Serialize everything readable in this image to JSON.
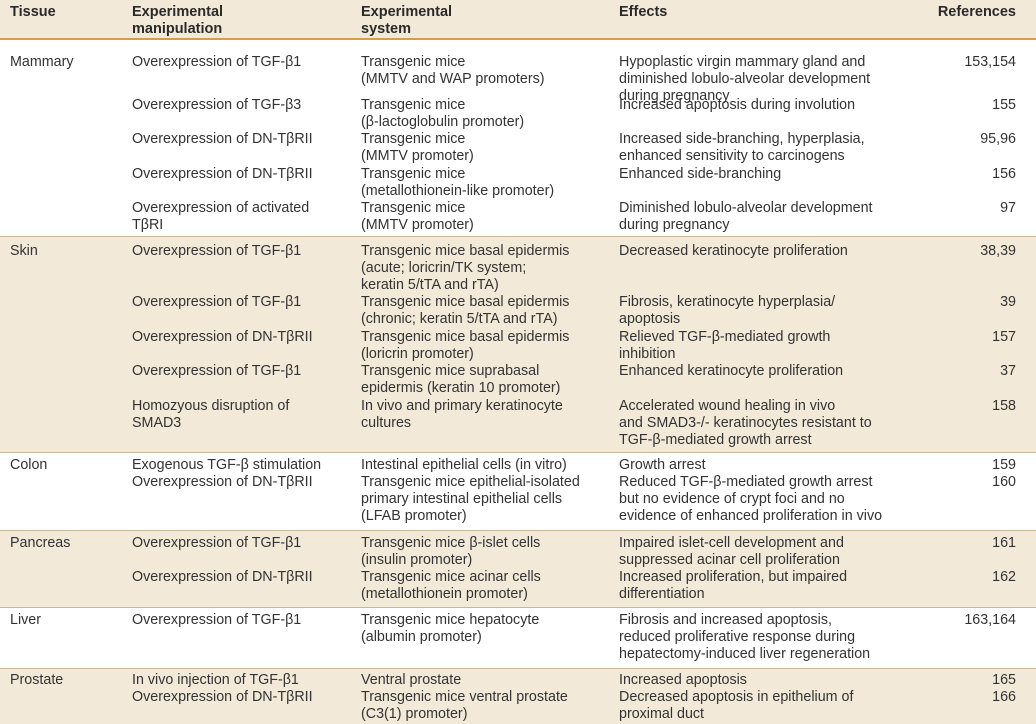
{
  "header": {
    "tissue": "Tissue",
    "manipulation": [
      "Experimental",
      "manipulation"
    ],
    "system": [
      "Experimental",
      "system"
    ],
    "effects": "Effects",
    "references": "References"
  },
  "groups": [
    {
      "tissue": "Mammary",
      "rows": [
        {
          "manipulation": [
            "Overexpression of TGF-β1"
          ],
          "system": [
            "Transgenic mice",
            "(MMTV and WAP promoters)"
          ],
          "effects": [
            "Hypoplastic virgin mammary gland and",
            "diminished lobulo-alveolar development",
            "during pregnancy"
          ],
          "references": "153,154"
        },
        {
          "manipulation": [
            "Overexpression of TGF-β3"
          ],
          "system": [
            "Transgenic mice",
            "(β-lactoglobulin promoter)"
          ],
          "effects": [
            "Increased apoptosis during involution"
          ],
          "references": "155"
        },
        {
          "manipulation": [
            "Overexpression of DN-TβRII"
          ],
          "system": [
            "Transgenic mice",
            "(MMTV promoter)"
          ],
          "effects": [
            "Increased side-branching, hyperplasia,",
            "enhanced sensitivity to carcinogens"
          ],
          "references": "95,96"
        },
        {
          "manipulation": [
            "Overexpression of DN-TβRII"
          ],
          "system": [
            "Transgenic mice",
            "(metallothionein-like promoter)"
          ],
          "effects": [
            "Enhanced side-branching"
          ],
          "references": "156"
        },
        {
          "manipulation": [
            "Overexpression of activated",
            "TβRI"
          ],
          "system": [
            "Transgenic mice",
            "(MMTV promoter)"
          ],
          "effects": [
            "Diminished lobulo-alveolar development",
            "during pregnancy"
          ],
          "references": "97"
        }
      ]
    },
    {
      "tissue": "Skin",
      "rows": [
        {
          "manipulation": [
            "Overexpression of TGF-β1"
          ],
          "system": [
            "Transgenic mice basal epidermis",
            "(acute; loricrin/TK system;",
            "keratin 5/tTA and rTA)"
          ],
          "effects": [
            "Decreased keratinocyte proliferation"
          ],
          "references": "38,39"
        },
        {
          "manipulation": [
            "Overexpression of TGF-β1"
          ],
          "system": [
            "Transgenic mice basal epidermis",
            "(chronic; keratin 5/tTA and rTA)"
          ],
          "effects": [
            "Fibrosis, keratinocyte hyperplasia/",
            "apoptosis"
          ],
          "references": "39"
        },
        {
          "manipulation": [
            "Overexpression of DN-TβRII"
          ],
          "system": [
            "Transgenic mice basal epidermis",
            "(loricrin promoter)"
          ],
          "effects": [
            "Relieved TGF-β-mediated growth",
            "inhibition"
          ],
          "references": "157"
        },
        {
          "manipulation": [
            "Overexpression of TGF-β1"
          ],
          "system": [
            "Transgenic mice suprabasal",
            "epidermis (keratin 10 promoter)"
          ],
          "effects": [
            "Enhanced keratinocyte proliferation"
          ],
          "references": "37"
        },
        {
          "manipulation": [
            "Homozyous disruption of",
            "SMAD3"
          ],
          "system": [
            "In vivo and primary keratinocyte",
            "cultures"
          ],
          "effects": [
            "Accelerated wound healing in vivo",
            "and SMAD3-/- keratinocytes resistant to",
            "TGF-β-mediated growth arrest"
          ],
          "references": "158"
        }
      ]
    },
    {
      "tissue": "Colon",
      "rows": [
        {
          "manipulation": [
            "Exogenous TGF-β stimulation"
          ],
          "system": [
            "Intestinal epithelial cells (in vitro)"
          ],
          "effects": [
            "Growth arrest"
          ],
          "references": "159"
        },
        {
          "manipulation": [
            "Overexpression of DN-TβRII"
          ],
          "system": [
            "Transgenic mice epithelial-isolated",
            "primary intestinal epithelial cells",
            "(LFAB promoter)"
          ],
          "effects": [
            "Reduced TGF-β-mediated growth arrest",
            "but no evidence of crypt foci and no",
            "evidence of enhanced proliferation in vivo"
          ],
          "references": "160"
        }
      ]
    },
    {
      "tissue": "Pancreas",
      "rows": [
        {
          "manipulation": [
            "Overexpression of TGF-β1"
          ],
          "system": [
            "Transgenic mice β-islet cells",
            "(insulin promoter)"
          ],
          "effects": [
            "Impaired islet-cell development and",
            "suppressed acinar cell proliferation"
          ],
          "references": "161"
        },
        {
          "manipulation": [
            "Overexpression of DN-TβRII"
          ],
          "system": [
            "Transgenic mice acinar cells",
            "(metallothionein promoter)"
          ],
          "effects": [
            "Increased proliferation, but impaired",
            "differentiation"
          ],
          "references": "162"
        }
      ]
    },
    {
      "tissue": "Liver",
      "rows": [
        {
          "manipulation": [
            "Overexpression of TGF-β1"
          ],
          "system": [
            "Transgenic mice hepatocyte",
            "(albumin promoter)"
          ],
          "effects": [
            "Fibrosis and increased apoptosis,",
            "reduced proliferative response during",
            "hepatectomy-induced liver regeneration"
          ],
          "references": "163,164"
        }
      ]
    },
    {
      "tissue": "Prostate",
      "rows": [
        {
          "manipulation": [
            "In vivo injection of TGF-β1"
          ],
          "system": [
            "Ventral prostate"
          ],
          "effects": [
            "Increased apoptosis"
          ],
          "references": "165"
        },
        {
          "manipulation": [
            "Overexpression of DN-TβRII"
          ],
          "system": [
            "Transgenic mice ventral prostate",
            "(C3(1) promoter)"
          ],
          "effects": [
            "Decreased apoptosis in epithelium of",
            "proximal duct"
          ],
          "references": "166"
        }
      ]
    }
  ]
}
